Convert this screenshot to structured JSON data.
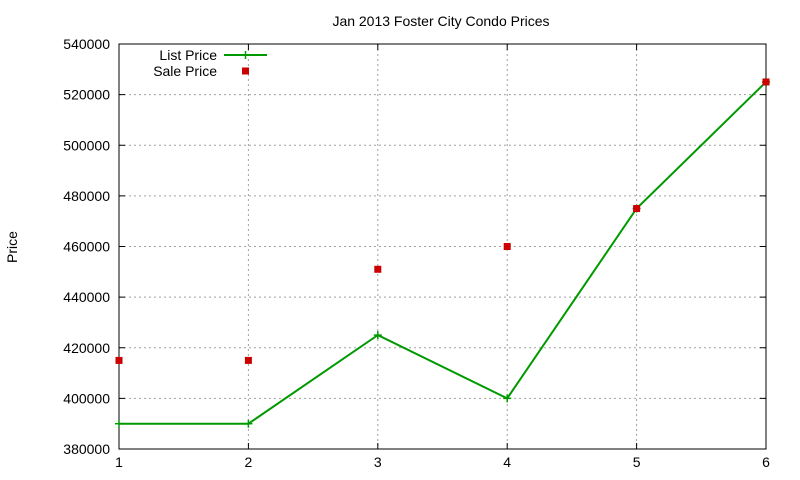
{
  "chart_data": {
    "type": "line",
    "title": "Jan 2013 Foster City Condo Prices",
    "xlabel": "",
    "ylabel": "Price",
    "xlim": [
      1,
      6
    ],
    "ylim": [
      380000,
      540000
    ],
    "x_ticks": [
      1,
      2,
      3,
      4,
      5,
      6
    ],
    "y_ticks": [
      380000,
      400000,
      420000,
      440000,
      460000,
      480000,
      500000,
      520000,
      540000
    ],
    "grid": true,
    "legend_position": "top-left",
    "series": [
      {
        "name": "List Price",
        "style": "line-with-plus-markers",
        "color": "#009900",
        "x": [
          1,
          2,
          3,
          4,
          5,
          6
        ],
        "y": [
          390000,
          390000,
          425000,
          400000,
          475000,
          525000
        ]
      },
      {
        "name": "Sale Price",
        "style": "square-points",
        "color": "#cc0000",
        "x": [
          1,
          2,
          3,
          4,
          5,
          6
        ],
        "y": [
          415000,
          415000,
          451000,
          460000,
          475000,
          525000
        ]
      }
    ]
  }
}
